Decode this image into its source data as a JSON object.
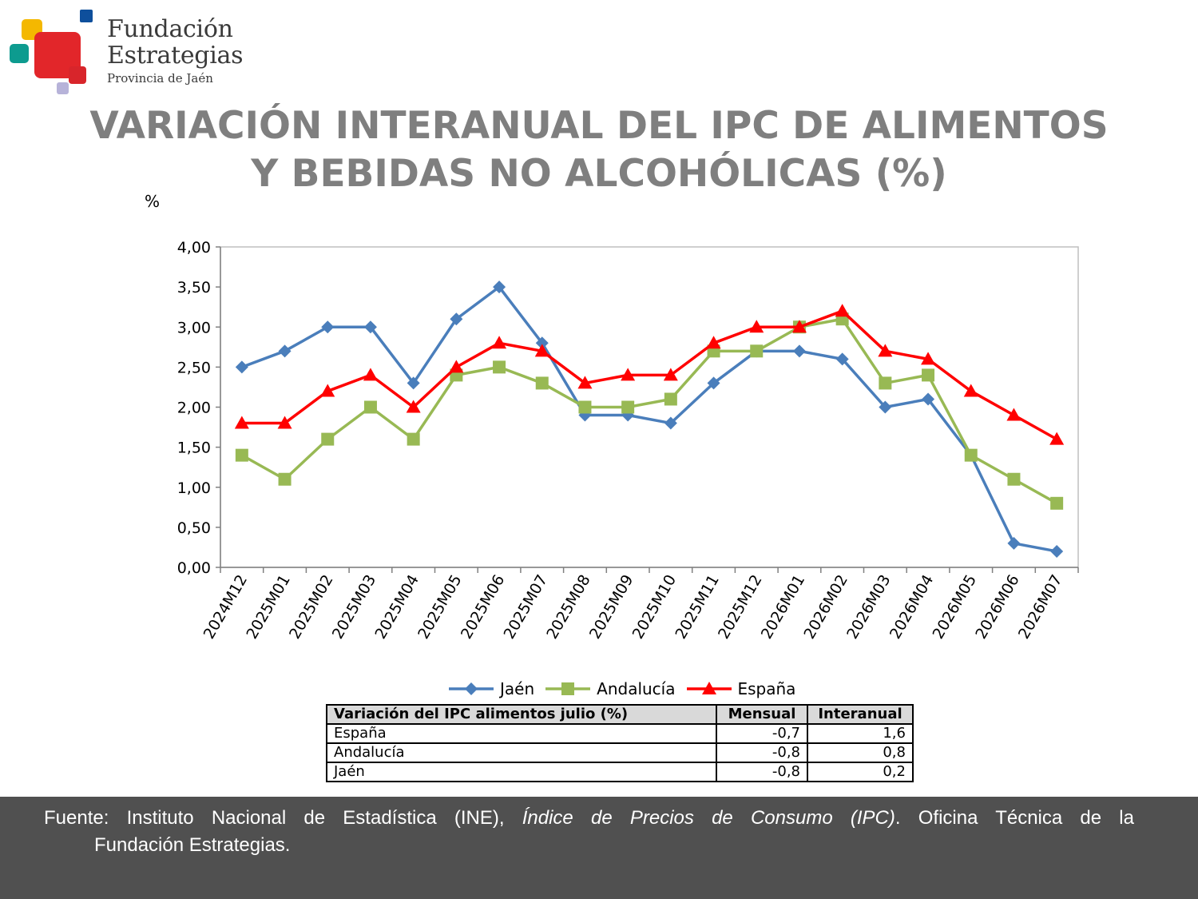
{
  "logo": {
    "line1": "Fundación",
    "line2": "Estrategias",
    "line3": "Provincia de Jaén"
  },
  "title": {
    "line1": "VARIACIÓN INTERANUAL DEL IPC DE ALIMENTOS",
    "line2": "Y BEBIDAS NO ALCOHÓLICAS (%)"
  },
  "chart_data": {
    "type": "line",
    "ylabel": "%",
    "ylim": [
      0,
      4
    ],
    "yticks": [
      "0,00",
      "0,50",
      "1,00",
      "1,50",
      "2,00",
      "2,50",
      "3,00",
      "3,50",
      "4,00"
    ],
    "categories": [
      "2024M12",
      "2025M01",
      "2025M02",
      "2025M03",
      "2025M04",
      "2025M05",
      "2025M06",
      "2025M07",
      "2025M08",
      "2025M09",
      "2025M10",
      "2025M11",
      "2025M12",
      "2026M01",
      "2026M02",
      "2026M03",
      "2026M04",
      "2026M05",
      "2026M06",
      "2026M07"
    ],
    "grid": false,
    "legend_position": "bottom",
    "series": [
      {
        "name": "Jaén",
        "color": "#4a7ebb",
        "marker": "diamond",
        "values": [
          2.5,
          2.7,
          3.0,
          3.0,
          2.3,
          3.1,
          3.5,
          2.8,
          1.9,
          1.9,
          1.8,
          2.3,
          2.7,
          2.7,
          2.6,
          2.0,
          2.1,
          1.4,
          0.3,
          0.2
        ]
      },
      {
        "name": "Andalucía",
        "color": "#98b954",
        "marker": "square",
        "values": [
          1.4,
          1.1,
          1.6,
          2.0,
          1.6,
          2.4,
          2.5,
          2.3,
          2.0,
          2.0,
          2.1,
          2.7,
          2.7,
          3.0,
          3.1,
          2.3,
          2.4,
          1.4,
          1.1,
          0.8
        ]
      },
      {
        "name": "España",
        "color": "#ff0000",
        "marker": "triangle",
        "values": [
          1.8,
          1.8,
          2.2,
          2.4,
          2.0,
          2.5,
          2.8,
          2.7,
          2.3,
          2.4,
          2.4,
          2.8,
          3.0,
          3.0,
          3.2,
          2.7,
          2.6,
          2.2,
          1.9,
          1.6
        ]
      }
    ]
  },
  "table": {
    "headers": [
      "Variación del IPC alimentos julio (%)",
      "Mensual",
      "Interanual"
    ],
    "rows": [
      {
        "label": "España",
        "mensual": "-0,7",
        "interanual": "1,6"
      },
      {
        "label": "Andalucía",
        "mensual": "-0,8",
        "interanual": "0,8"
      },
      {
        "label": "Jaén",
        "mensual": "-0,8",
        "interanual": "0,2"
      }
    ]
  },
  "footer": {
    "prefix": "Fuente: Instituto Nacional de Estadística (INE), ",
    "italic": "Índice de Precios de Consumo (IPC)",
    "suffix": ". Oficina Técnica de la",
    "line2": "Fundación Estrategias."
  },
  "colors": {
    "title": "#7f7f7f",
    "footer_bg": "#505050"
  }
}
